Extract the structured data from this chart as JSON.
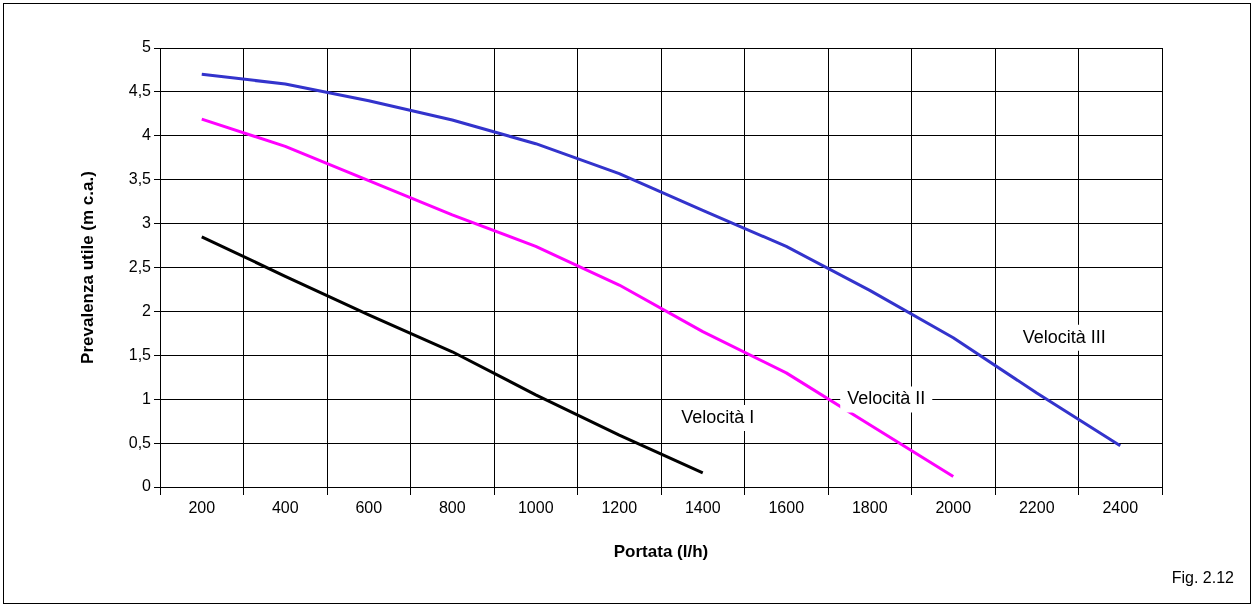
{
  "chart_data": {
    "type": "line",
    "xlabel": "Portata (l/h)",
    "ylabel": "Prevalenza utile (m c.a.)",
    "categories": [
      "200",
      "400",
      "600",
      "800",
      "1000",
      "1200",
      "1400",
      "1600",
      "1800",
      "2000",
      "2200",
      "2400"
    ],
    "series": [
      {
        "name": "Velocità III",
        "color": "#3333cc",
        "values": [
          4.7,
          4.59,
          4.4,
          4.18,
          3.91,
          3.57,
          3.15,
          2.74,
          2.24,
          1.7,
          1.07,
          0.47
        ]
      },
      {
        "name": "Velocità II",
        "color": "#ff00ff",
        "values": [
          4.19,
          3.88,
          3.49,
          3.1,
          2.74,
          2.3,
          1.77,
          1.3,
          0.71,
          0.12,
          null,
          null
        ]
      },
      {
        "name": "Velocità I",
        "color": "#000000",
        "values": [
          2.85,
          2.4,
          1.96,
          1.54,
          1.05,
          0.59,
          0.16,
          null,
          null,
          null,
          null,
          null
        ]
      }
    ],
    "ylim": [
      0,
      5
    ],
    "yticks": [
      0,
      {
        "value": 0.5,
        "label": "0,5"
      },
      1,
      {
        "value": 1.5,
        "label": "1,5"
      },
      2,
      {
        "value": 2.5,
        "label": "2,5"
      },
      3,
      {
        "value": 3.5,
        "label": "3,5"
      },
      4,
      {
        "value": 4.5,
        "label": "4,5"
      },
      5
    ],
    "grid": true,
    "legend": false,
    "marker": "none",
    "line_style": "solid",
    "annotations": [
      "Fig. 2.12"
    ]
  }
}
